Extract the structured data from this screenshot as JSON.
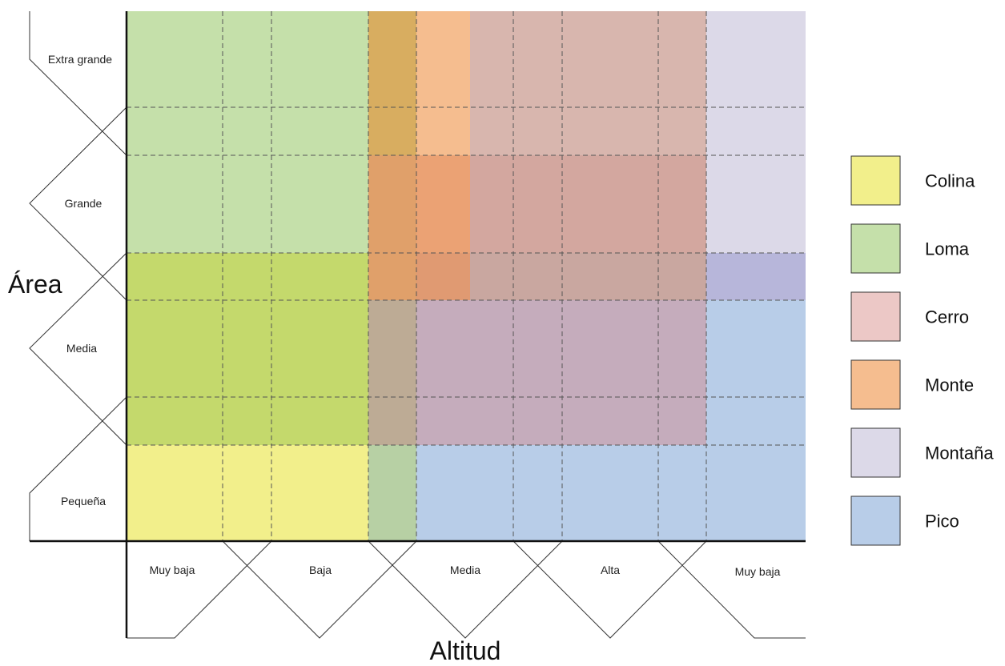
{
  "axes": {
    "y_title": "Área",
    "x_title": "Altitud"
  },
  "y_categories": [
    "Extra grande",
    "Grande",
    "Media",
    "Pequeña"
  ],
  "x_categories": [
    "Muy baja",
    "Baja",
    "Media",
    "Alta",
    "Muy baja"
  ],
  "legend": [
    {
      "label": "Colina",
      "color": "#f2ef8b"
    },
    {
      "label": "Loma",
      "color": "#c5e0aa"
    },
    {
      "label": "Cerro",
      "color": "#ecc8c6"
    },
    {
      "label": "Monte",
      "color": "#f5bd8f"
    },
    {
      "label": "Montaña",
      "color": "#dcd9e8"
    },
    {
      "label": "Pico",
      "color": "#b8cde8"
    }
  ]
}
